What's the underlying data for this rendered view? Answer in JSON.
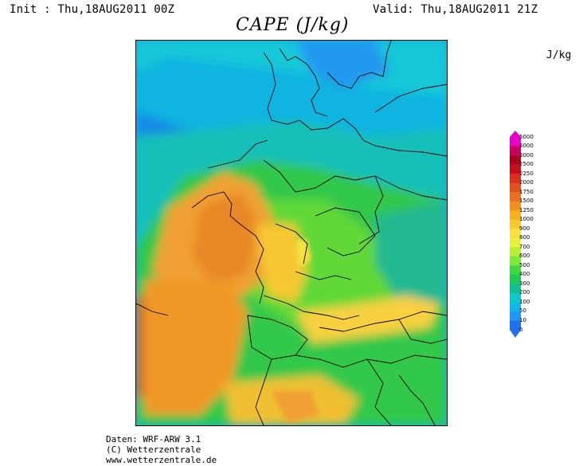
{
  "header": {
    "init": "Init : Thu,18AUG2011 00Z",
    "valid": "Valid: Thu,18AUG2011 21Z"
  },
  "title": "CAPE (J/kg)",
  "unit": "J/kg",
  "colorbar": {
    "levels": [
      "5000",
      "4000",
      "3000",
      "2500",
      "2250",
      "2000",
      "1750",
      "1500",
      "1250",
      "1000",
      "900",
      "800",
      "700",
      "600",
      "500",
      "400",
      "300",
      "200",
      "100",
      "50",
      "10",
      "0"
    ],
    "colors": [
      "#e800c8",
      "#c80060",
      "#a8001c",
      "#c4101c",
      "#d8301c",
      "#e0501c",
      "#e87020",
      "#f09020",
      "#f8b020",
      "#f8c830",
      "#f8e040",
      "#e8f040",
      "#b8f038",
      "#80e838",
      "#40d840",
      "#20c858",
      "#10c090",
      "#10c8c8",
      "#10b8e8",
      "#2098f8",
      "#2070f0"
    ]
  },
  "credits": {
    "line1": "Daten: WRF-ARW 3.1",
    "line2": "(C) Wetterzentrale",
    "line3": "www.wetterzentrale.de"
  }
}
